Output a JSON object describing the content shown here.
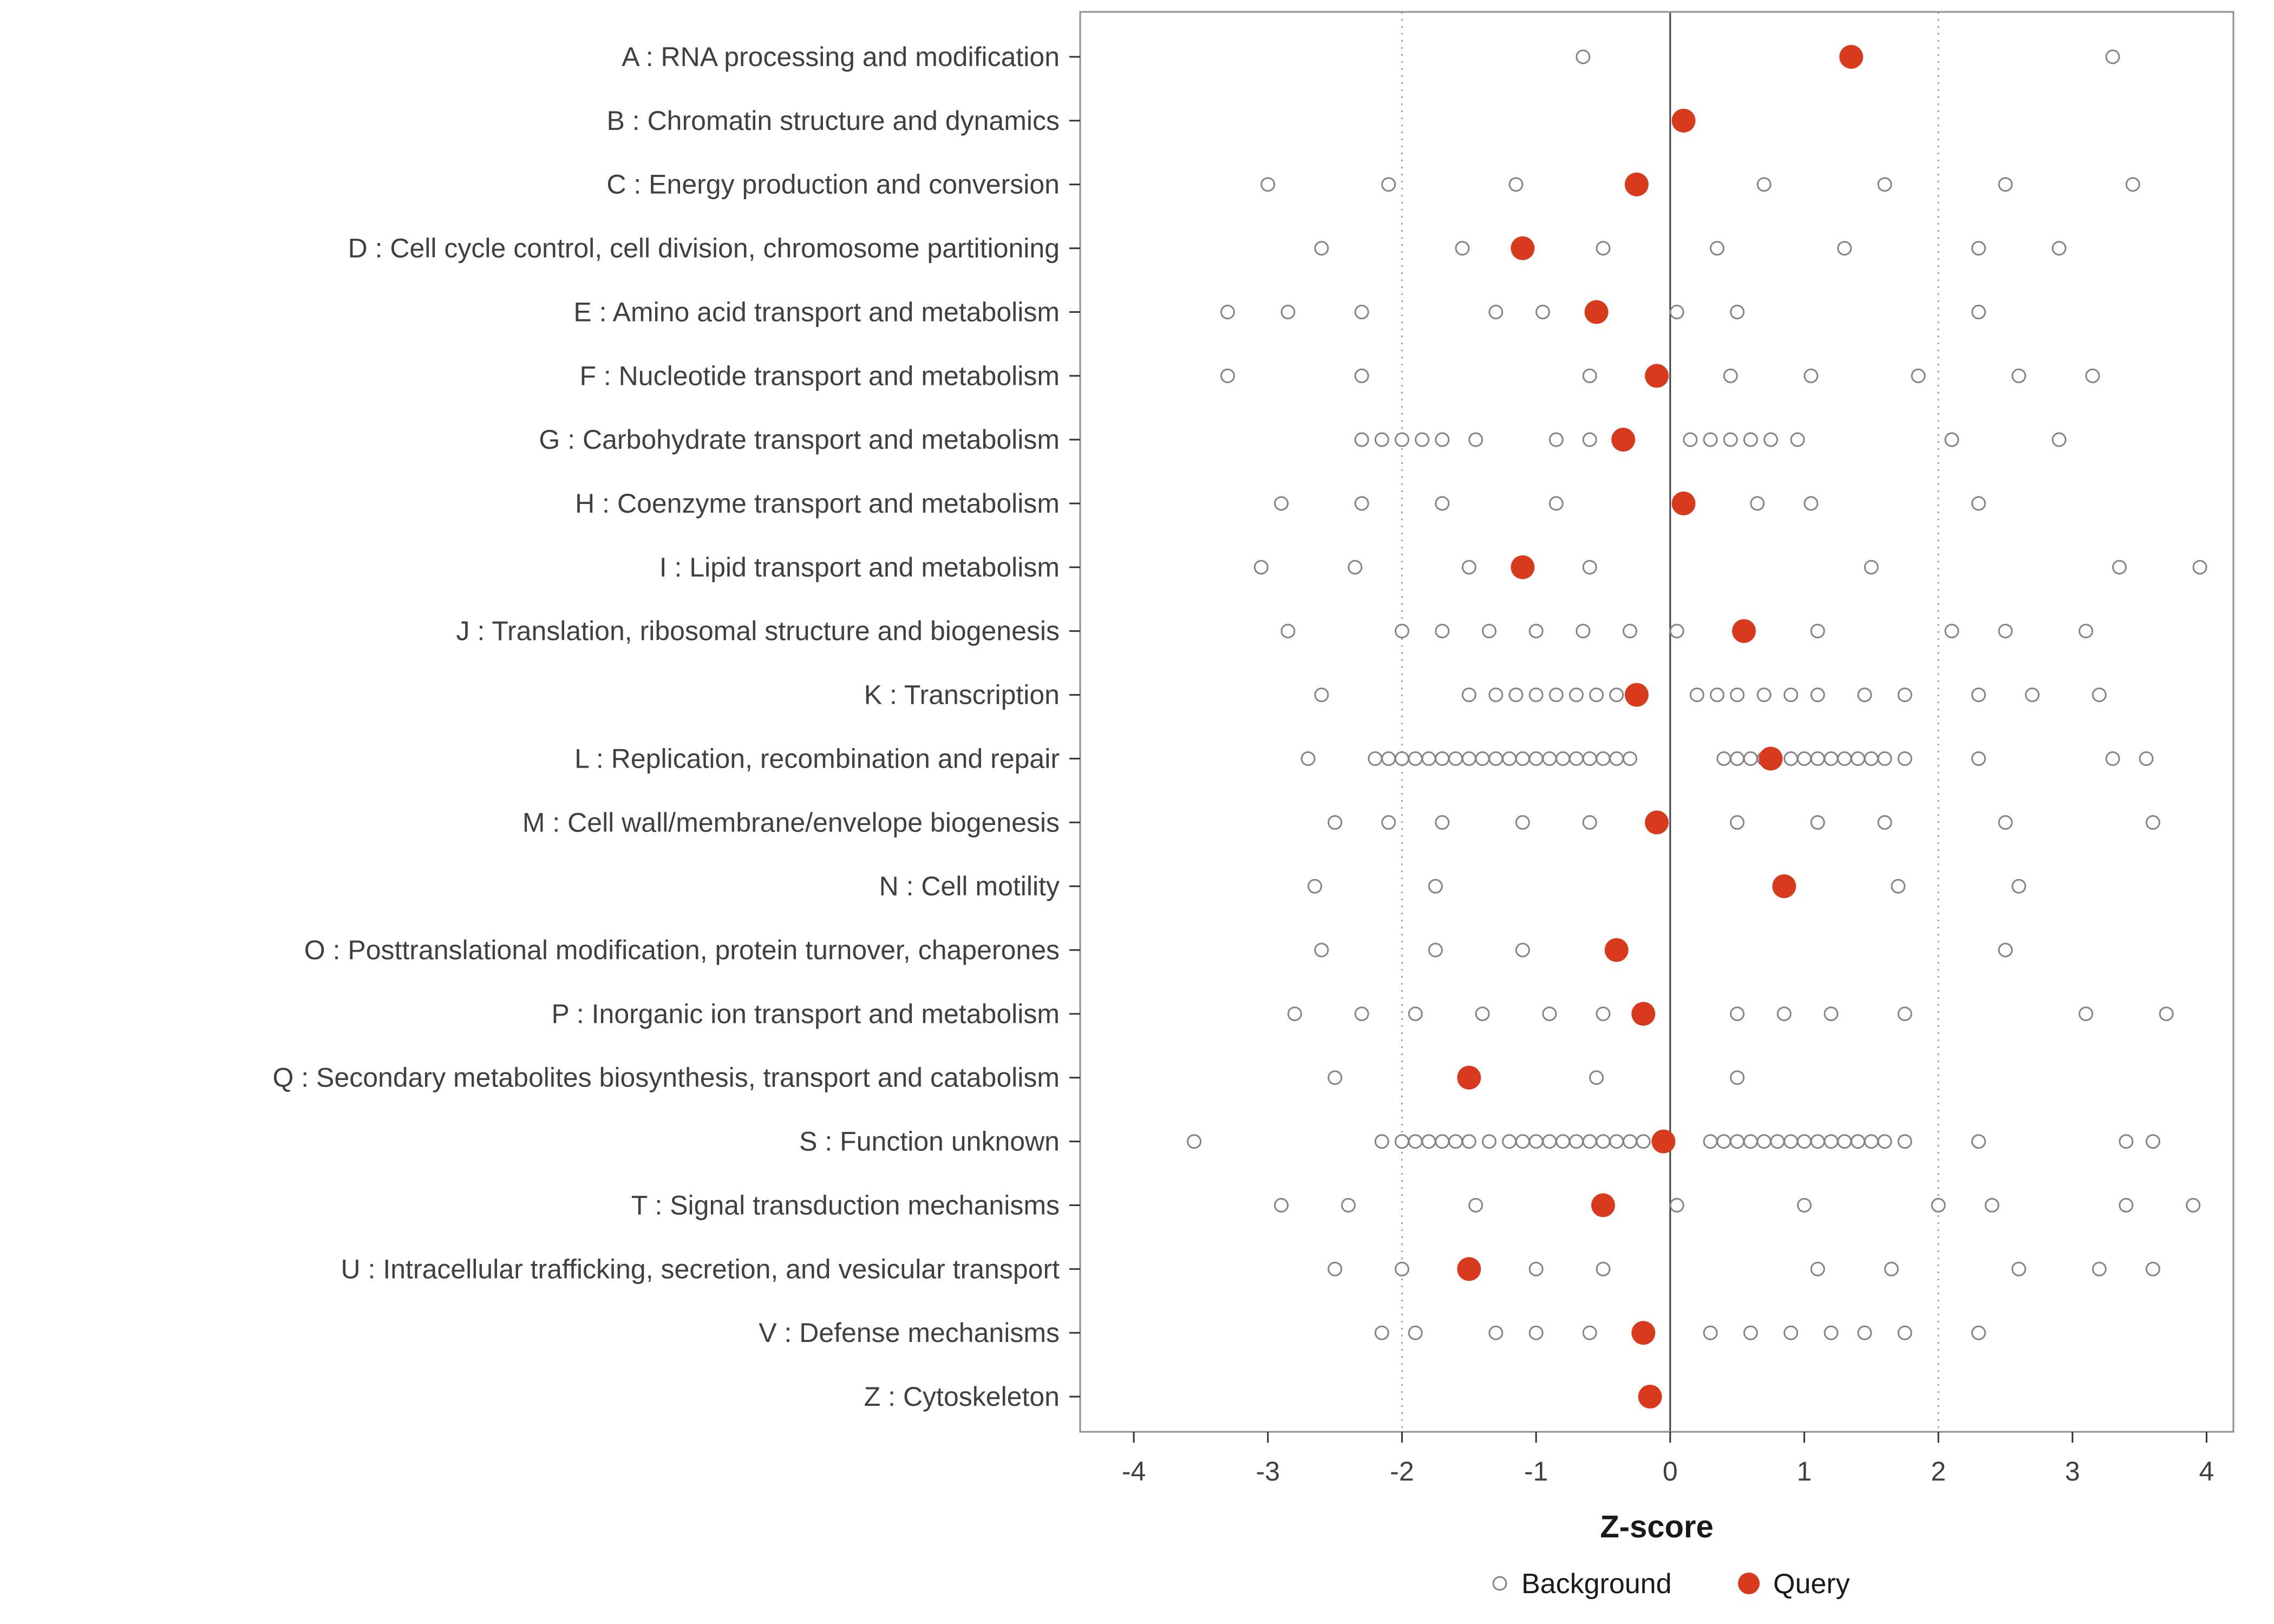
{
  "chart_data": {
    "type": "scatter",
    "title": "",
    "xlabel": "Z-score",
    "ylabel": "",
    "xlim": [
      -4.4,
      4.2
    ],
    "x_ticks": [
      -4,
      -3,
      -2,
      -1,
      0,
      1,
      2,
      3,
      4
    ],
    "reference_lines": {
      "solid": [
        0
      ],
      "dotted": [
        -2,
        2
      ]
    },
    "legend": [
      {
        "label": "Background",
        "marker": "open-circle"
      },
      {
        "label": "Query",
        "marker": "filled-circle"
      }
    ],
    "colors": {
      "query": "#d73a1c",
      "background_stroke": "#858585",
      "background_fill": "#ffffff",
      "text": "#404040",
      "axis": "#333333",
      "grid_dotted": "#8f8f8f",
      "zero_line": "#3f3f3f",
      "panel_border": "#8f8f8f",
      "panel_fill": "#ffffff"
    },
    "rows": [
      {
        "label": "A : RNA processing and modification",
        "query": 1.35,
        "background": [
          -0.65,
          3.3
        ]
      },
      {
        "label": "B : Chromatin structure and dynamics",
        "query": 0.1,
        "background": []
      },
      {
        "label": "C : Energy production and conversion",
        "query": -0.25,
        "background": [
          -3.0,
          -2.1,
          -1.15,
          0.7,
          1.6,
          2.5,
          3.45
        ]
      },
      {
        "label": "D : Cell cycle control, cell division, chromosome partitioning",
        "query": -1.1,
        "background": [
          -2.6,
          -1.55,
          -0.5,
          0.35,
          1.3,
          2.3,
          2.9
        ]
      },
      {
        "label": "E : Amino acid transport and metabolism",
        "query": -0.55,
        "background": [
          -3.3,
          -2.85,
          -2.3,
          -1.3,
          -0.95,
          0.05,
          0.5,
          2.3
        ]
      },
      {
        "label": "F : Nucleotide transport and metabolism",
        "query": -0.1,
        "background": [
          -3.3,
          -2.3,
          -0.6,
          0.45,
          1.05,
          1.85,
          2.6,
          3.15
        ]
      },
      {
        "label": "G : Carbohydrate transport and metabolism",
        "query": -0.35,
        "background": [
          -2.3,
          -2.15,
          -2.0,
          -1.85,
          -1.7,
          -1.45,
          -0.85,
          -0.6,
          0.15,
          0.3,
          0.45,
          0.6,
          0.75,
          0.95,
          2.1,
          2.9
        ]
      },
      {
        "label": "H : Coenzyme transport and metabolism",
        "query": 0.1,
        "background": [
          -2.9,
          -2.3,
          -1.7,
          -0.85,
          0.65,
          1.05,
          2.3
        ]
      },
      {
        "label": "I : Lipid transport and metabolism",
        "query": -1.1,
        "background": [
          -3.05,
          -2.35,
          -1.5,
          -0.6,
          1.5,
          3.35,
          3.95
        ]
      },
      {
        "label": "J : Translation, ribosomal structure and biogenesis",
        "query": 0.55,
        "background": [
          -2.85,
          -2.0,
          -1.7,
          -1.35,
          -1.0,
          -0.65,
          -0.3,
          0.05,
          1.1,
          2.1,
          2.5,
          3.1
        ]
      },
      {
        "label": "K : Transcription",
        "query": -0.25,
        "background": [
          -2.6,
          -1.5,
          -1.3,
          -1.15,
          -1.0,
          -0.85,
          -0.7,
          -0.55,
          -0.4,
          0.2,
          0.35,
          0.5,
          0.7,
          0.9,
          1.1,
          1.45,
          1.75,
          2.3,
          2.7,
          3.2
        ]
      },
      {
        "label": "L : Replication, recombination and repair",
        "query": 0.75,
        "background": [
          -2.7,
          -2.2,
          -2.1,
          -2.0,
          -1.9,
          -1.8,
          -1.7,
          -1.6,
          -1.5,
          -1.4,
          -1.3,
          -1.2,
          -1.1,
          -1.0,
          -0.9,
          -0.8,
          -0.7,
          -0.6,
          -0.5,
          -0.4,
          -0.3,
          0.4,
          0.5,
          0.6,
          0.7,
          0.9,
          1.0,
          1.1,
          1.2,
          1.3,
          1.4,
          1.5,
          1.6,
          1.75,
          2.3,
          3.3,
          3.55
        ]
      },
      {
        "label": "M : Cell wall/membrane/envelope biogenesis",
        "query": -0.1,
        "background": [
          -2.5,
          -2.1,
          -1.7,
          -1.1,
          -0.6,
          0.5,
          1.1,
          1.6,
          2.5,
          3.6
        ]
      },
      {
        "label": "N : Cell motility",
        "query": 0.85,
        "background": [
          -2.65,
          -1.75,
          1.7,
          2.6
        ]
      },
      {
        "label": "O : Posttranslational modification, protein turnover, chaperones",
        "query": -0.4,
        "background": [
          -2.6,
          -1.75,
          -1.1,
          2.5
        ]
      },
      {
        "label": "P : Inorganic ion transport and metabolism",
        "query": -0.2,
        "background": [
          -2.8,
          -2.3,
          -1.9,
          -1.4,
          -0.9,
          -0.5,
          0.5,
          0.85,
          1.2,
          1.75,
          3.1,
          3.7
        ]
      },
      {
        "label": "Q : Secondary metabolites biosynthesis, transport and catabolism",
        "query": -1.5,
        "background": [
          -2.5,
          -0.55,
          0.5
        ]
      },
      {
        "label": "S : Function unknown",
        "query": -0.05,
        "background": [
          -3.55,
          -2.15,
          -2.0,
          -1.9,
          -1.8,
          -1.7,
          -1.6,
          -1.5,
          -1.35,
          -1.2,
          -1.1,
          -1.0,
          -0.9,
          -0.8,
          -0.7,
          -0.6,
          -0.5,
          -0.4,
          -0.3,
          -0.2,
          0.3,
          0.4,
          0.5,
          0.6,
          0.7,
          0.8,
          0.9,
          1.0,
          1.1,
          1.2,
          1.3,
          1.4,
          1.5,
          1.6,
          1.75,
          2.3,
          3.4,
          3.6
        ]
      },
      {
        "label": "T : Signal transduction mechanisms",
        "query": -0.5,
        "background": [
          -2.9,
          -2.4,
          -1.45,
          0.05,
          1.0,
          2.0,
          2.4,
          3.4,
          3.9
        ]
      },
      {
        "label": "U : Intracellular trafficking, secretion, and vesicular transport",
        "query": -1.5,
        "background": [
          -2.5,
          -2.0,
          -1.0,
          -0.5,
          1.1,
          1.65,
          2.6,
          3.2,
          3.6
        ]
      },
      {
        "label": "V : Defense mechanisms",
        "query": -0.2,
        "background": [
          -2.15,
          -1.9,
          -1.3,
          -1.0,
          -0.6,
          0.3,
          0.6,
          0.9,
          1.2,
          1.45,
          1.75,
          2.3
        ]
      },
      {
        "label": "Z : Cytoskeleton",
        "query": -0.15,
        "background": []
      }
    ]
  }
}
